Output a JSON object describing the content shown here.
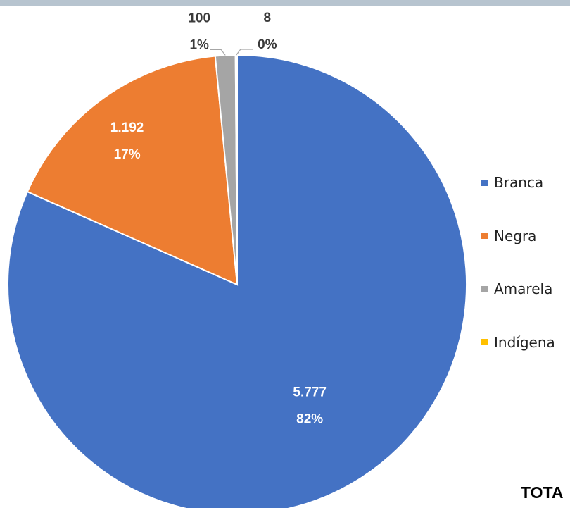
{
  "chart_data": {
    "type": "pie",
    "categories": [
      "Branca",
      "Negra",
      "Amarela",
      "Indígena"
    ],
    "values": [
      5777,
      1192,
      100,
      8
    ],
    "value_labels": [
      "5.777",
      "1.192",
      "100",
      "8"
    ],
    "percent_labels": [
      "82%",
      "17%",
      "1%",
      "0%"
    ],
    "colors": [
      "#4472c4",
      "#ed7d31",
      "#a5a5a5",
      "#ffc000"
    ],
    "legend_position": "right"
  },
  "footer": {
    "total_label": "TOTA"
  }
}
